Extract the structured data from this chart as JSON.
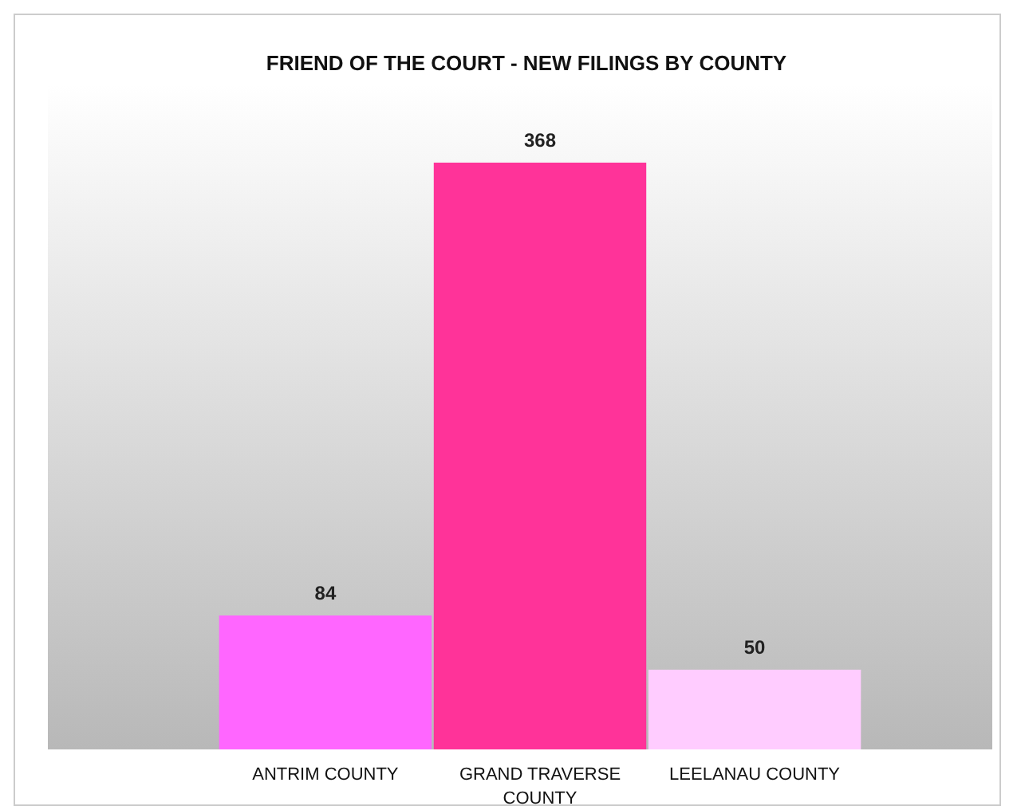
{
  "chart_data": {
    "type": "bar",
    "title": "FRIEND OF THE COURT - NEW FILINGS BY COUNTY",
    "categories": [
      "ANTRIM COUNTY",
      "GRAND TRAVERSE COUNTY",
      "LEELANAU COUNTY"
    ],
    "values": [
      84,
      368,
      50
    ],
    "colors": [
      "#ff66ff",
      "#ff3399",
      "#ffccff"
    ],
    "data_labels": true
  }
}
